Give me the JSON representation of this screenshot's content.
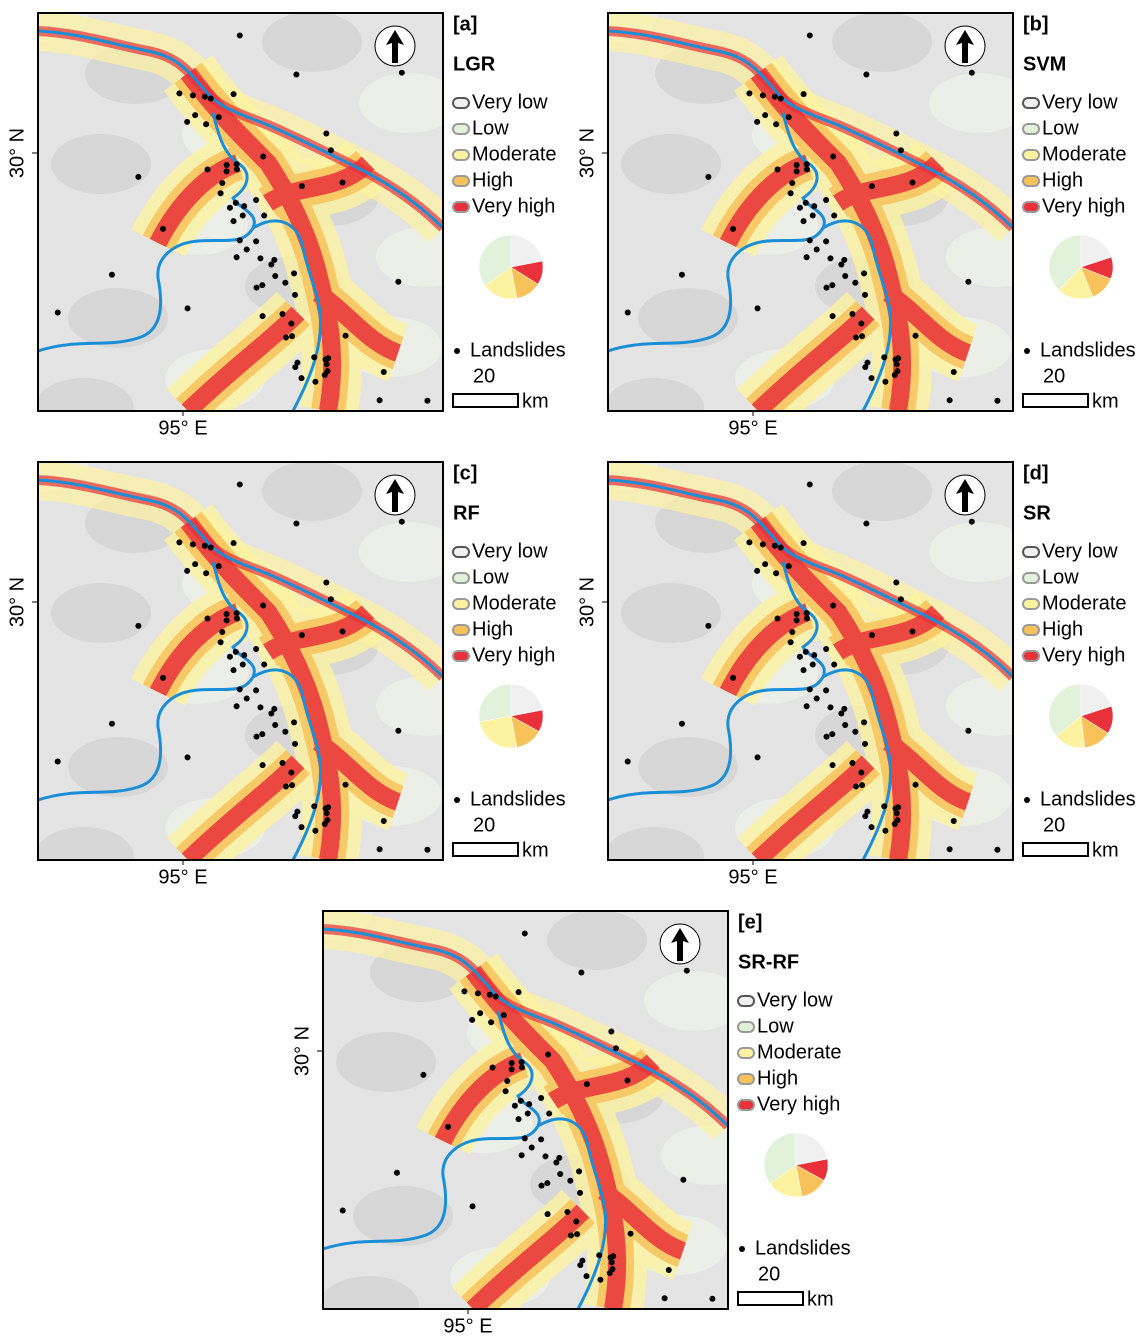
{
  "panels": [
    {
      "label": "[a]",
      "model": "LGR",
      "pie": {
        "values": [
          22,
          35,
          18,
          13,
          12
        ]
      }
    },
    {
      "label": "[b]",
      "model": "SVM",
      "pie": {
        "values": [
          20,
          38,
          18,
          13,
          11
        ]
      }
    },
    {
      "label": "[c]",
      "model": "RF",
      "pie": {
        "values": [
          22,
          28,
          25,
          14,
          11
        ]
      }
    },
    {
      "label": "[d]",
      "model": "SR",
      "pie": {
        "values": [
          20,
          36,
          16,
          14,
          14
        ]
      }
    },
    {
      "label": "[e]",
      "model": "SR-RF",
      "pie": {
        "values": [
          22,
          35,
          18,
          14,
          11
        ]
      }
    }
  ],
  "legend": {
    "classes": [
      "Very low",
      "Low",
      "Moderate",
      "High",
      "Very high"
    ],
    "colors": [
      "#f0f0f0",
      "#e2f1da",
      "#fdf2a0",
      "#f8c25a",
      "#e8313a"
    ],
    "landslides": "Landslides"
  },
  "scale": {
    "distance": 20,
    "unit": "km"
  },
  "axes": {
    "lat": "30° N",
    "lon": "95° E"
  }
}
